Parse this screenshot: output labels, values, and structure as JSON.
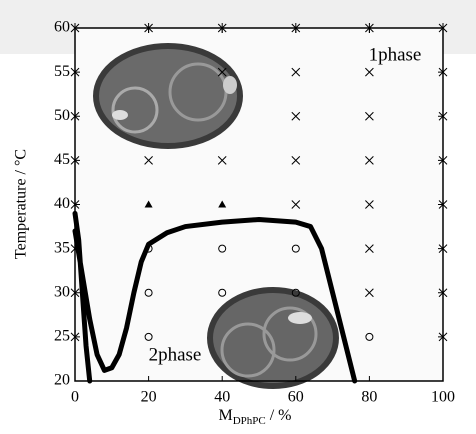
{
  "chart_data": {
    "type": "scatter",
    "xlabel": "M",
    "xlabel_sub": "DPhPC",
    "xlabel_unit": " / %",
    "ylabel": "Temperature / °C",
    "xlim": [
      0,
      100
    ],
    "ylim": [
      20,
      60
    ],
    "xticks": [
      0,
      20,
      40,
      60,
      80,
      100
    ],
    "yticks": [
      20,
      25,
      30,
      35,
      40,
      45,
      50,
      55,
      60
    ],
    "annotations": [
      "1phase",
      "2phase"
    ],
    "series": [
      {
        "marker": "asterisk",
        "color": "#000000",
        "x": [
          0,
          20,
          40,
          60,
          80,
          100,
          0,
          0,
          0,
          0,
          0,
          0,
          0,
          100,
          100,
          100,
          100,
          100,
          100,
          100
        ],
        "values": [
          60,
          60,
          60,
          60,
          60,
          60,
          55,
          50,
          45,
          40,
          35,
          30,
          25,
          55,
          50,
          45,
          40,
          35,
          30,
          25
        ]
      },
      {
        "marker": "cross",
        "color": "#000000",
        "x": [
          20,
          40,
          40,
          60,
          60,
          60,
          60,
          80,
          80,
          80,
          80,
          80,
          80
        ],
        "values": [
          45,
          55,
          45,
          55,
          50,
          45,
          40,
          55,
          50,
          45,
          40,
          35,
          30
        ]
      },
      {
        "marker": "triangle",
        "color": "#000000",
        "x": [
          20,
          40
        ],
        "values": [
          40,
          40
        ]
      },
      {
        "marker": "circle",
        "color": "#000000",
        "x": [
          20,
          20,
          20,
          40,
          40,
          60,
          60,
          80
        ],
        "values": [
          35,
          30,
          25,
          35,
          30,
          35,
          30,
          25
        ]
      },
      {
        "marker": "line",
        "color": "#000000",
        "x": [
          0,
          1,
          2,
          3,
          4,
          null,
          0,
          2,
          4,
          6,
          8,
          10,
          12,
          14,
          16,
          18,
          20,
          25,
          30,
          40,
          50,
          60,
          64,
          67,
          70,
          73,
          76
        ],
        "values": [
          39,
          36,
          30,
          24,
          20,
          null,
          37,
          32,
          27,
          23,
          21.2,
          21.5,
          23,
          26,
          30,
          33.5,
          35.5,
          36.8,
          37.5,
          38,
          38.3,
          38,
          37.5,
          35,
          30,
          25,
          20
        ]
      }
    ]
  }
}
